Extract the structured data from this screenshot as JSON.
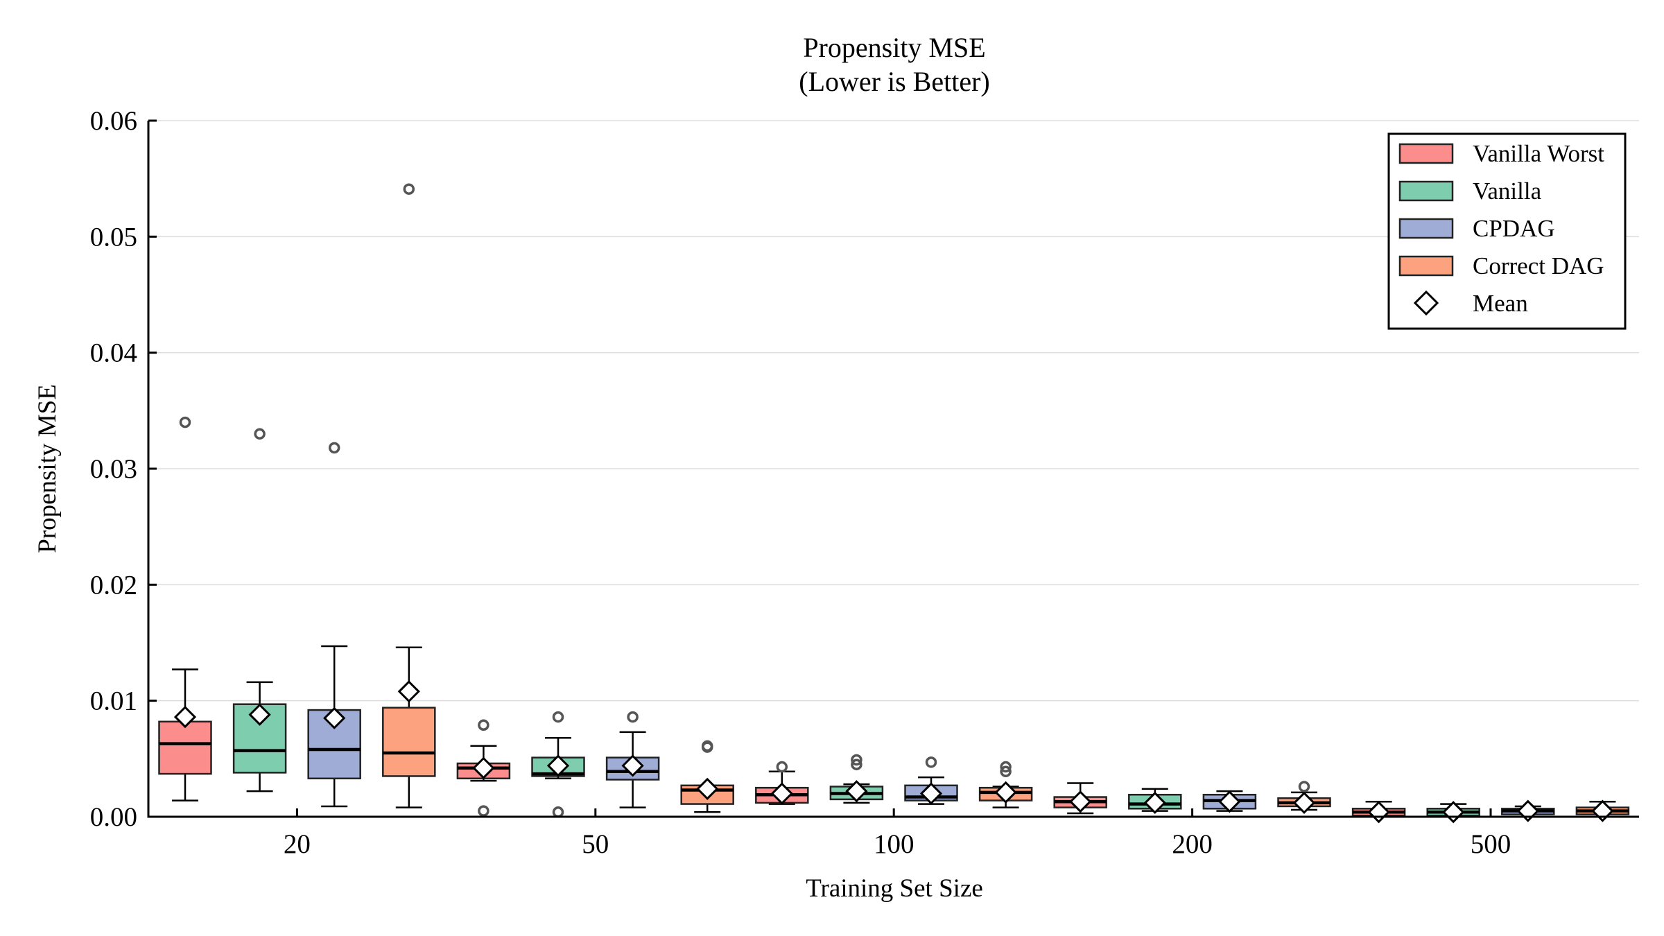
{
  "chart_data": {
    "type": "box",
    "title": "Propensity MSE",
    "subtitle": "(Lower is Better)",
    "xlabel": "Training Set Size",
    "ylabel": "Propensity MSE",
    "ylim": [
      0,
      0.06
    ],
    "yticks": [
      "0.00",
      "0.01",
      "0.02",
      "0.03",
      "0.04",
      "0.05",
      "0.06"
    ],
    "categories": [
      "20",
      "50",
      "100",
      "200",
      "500"
    ],
    "grid": "horizontal",
    "legend_position": "top-right",
    "mean_label": "Mean",
    "series": [
      {
        "name": "Vanilla Worst",
        "color": "#fc8d8d",
        "stats": [
          {
            "min": 0.0014,
            "q1": 0.0037,
            "median": 0.0063,
            "q3": 0.0082,
            "max": 0.0127,
            "mean": 0.0086,
            "fliers": [
              0.034
            ]
          },
          {
            "min": 0.0031,
            "q1": 0.0033,
            "median": 0.0042,
            "q3": 0.0046,
            "max": 0.0061,
            "mean": 0.0042,
            "fliers": [
              0.0079,
              0.0005
            ]
          },
          {
            "min": 0.0011,
            "q1": 0.0012,
            "median": 0.0019,
            "q3": 0.0025,
            "max": 0.0039,
            "mean": 0.002,
            "fliers": [
              0.0043
            ]
          },
          {
            "min": 0.0003,
            "q1": 0.0008,
            "median": 0.0013,
            "q3": 0.0017,
            "max": 0.0029,
            "mean": 0.0013,
            "fliers": []
          },
          {
            "min": 0.0,
            "q1": 0.0001,
            "median": 0.0004,
            "q3": 0.0007,
            "max": 0.0013,
            "mean": 0.0004,
            "fliers": []
          }
        ]
      },
      {
        "name": "Vanilla",
        "color": "#7fcdaf",
        "stats": [
          {
            "min": 0.0022,
            "q1": 0.0038,
            "median": 0.0057,
            "q3": 0.0097,
            "max": 0.0116,
            "mean": 0.0088,
            "fliers": [
              0.033
            ]
          },
          {
            "min": 0.0033,
            "q1": 0.0035,
            "median": 0.0037,
            "q3": 0.0051,
            "max": 0.0068,
            "mean": 0.0044,
            "fliers": [
              0.0086,
              0.0004
            ]
          },
          {
            "min": 0.0012,
            "q1": 0.0015,
            "median": 0.002,
            "q3": 0.0026,
            "max": 0.0028,
            "mean": 0.0022,
            "fliers": [
              0.0049,
              0.0045
            ]
          },
          {
            "min": 0.0005,
            "q1": 0.0007,
            "median": 0.0011,
            "q3": 0.0019,
            "max": 0.0024,
            "mean": 0.0012,
            "fliers": []
          },
          {
            "min": 0.0,
            "q1": 0.0001,
            "median": 0.0004,
            "q3": 0.0007,
            "max": 0.0011,
            "mean": 0.0004,
            "fliers": []
          }
        ]
      },
      {
        "name": "CPDAG",
        "color": "#9fadd6",
        "stats": [
          {
            "min": 0.0009,
            "q1": 0.0033,
            "median": 0.0058,
            "q3": 0.0092,
            "max": 0.0147,
            "mean": 0.0085,
            "fliers": [
              0.0318
            ]
          },
          {
            "min": 0.0008,
            "q1": 0.0032,
            "median": 0.0039,
            "q3": 0.0051,
            "max": 0.0073,
            "mean": 0.0044,
            "fliers": [
              0.0086
            ]
          },
          {
            "min": 0.0011,
            "q1": 0.0014,
            "median": 0.0017,
            "q3": 0.0027,
            "max": 0.0034,
            "mean": 0.002,
            "fliers": [
              0.0047
            ]
          },
          {
            "min": 0.0005,
            "q1": 0.0007,
            "median": 0.0014,
            "q3": 0.0019,
            "max": 0.0022,
            "mean": 0.0013,
            "fliers": []
          },
          {
            "min": 0.0,
            "q1": 0.0002,
            "median": 0.0005,
            "q3": 0.0007,
            "max": 0.0009,
            "mean": 0.0005,
            "fliers": []
          }
        ]
      },
      {
        "name": "Correct DAG",
        "color": "#fca27f",
        "stats": [
          {
            "min": 0.0008,
            "q1": 0.0035,
            "median": 0.0055,
            "q3": 0.0094,
            "max": 0.0146,
            "mean": 0.0108,
            "fliers": [
              0.0541
            ]
          },
          {
            "min": 0.0004,
            "q1": 0.0011,
            "median": 0.0023,
            "q3": 0.0027,
            "max": 0.0027,
            "mean": 0.0024,
            "fliers": [
              0.006,
              0.0061
            ]
          },
          {
            "min": 0.0008,
            "q1": 0.0014,
            "median": 0.0021,
            "q3": 0.0025,
            "max": 0.0026,
            "mean": 0.0021,
            "fliers": [
              0.0043,
              0.0039
            ]
          },
          {
            "min": 0.0006,
            "q1": 0.0009,
            "median": 0.0012,
            "q3": 0.0016,
            "max": 0.0021,
            "mean": 0.0012,
            "fliers": [
              0.0026
            ]
          },
          {
            "min": 0.0,
            "q1": 0.0002,
            "median": 0.0005,
            "q3": 0.0008,
            "max": 0.0013,
            "mean": 0.0005,
            "fliers": []
          }
        ]
      }
    ]
  }
}
